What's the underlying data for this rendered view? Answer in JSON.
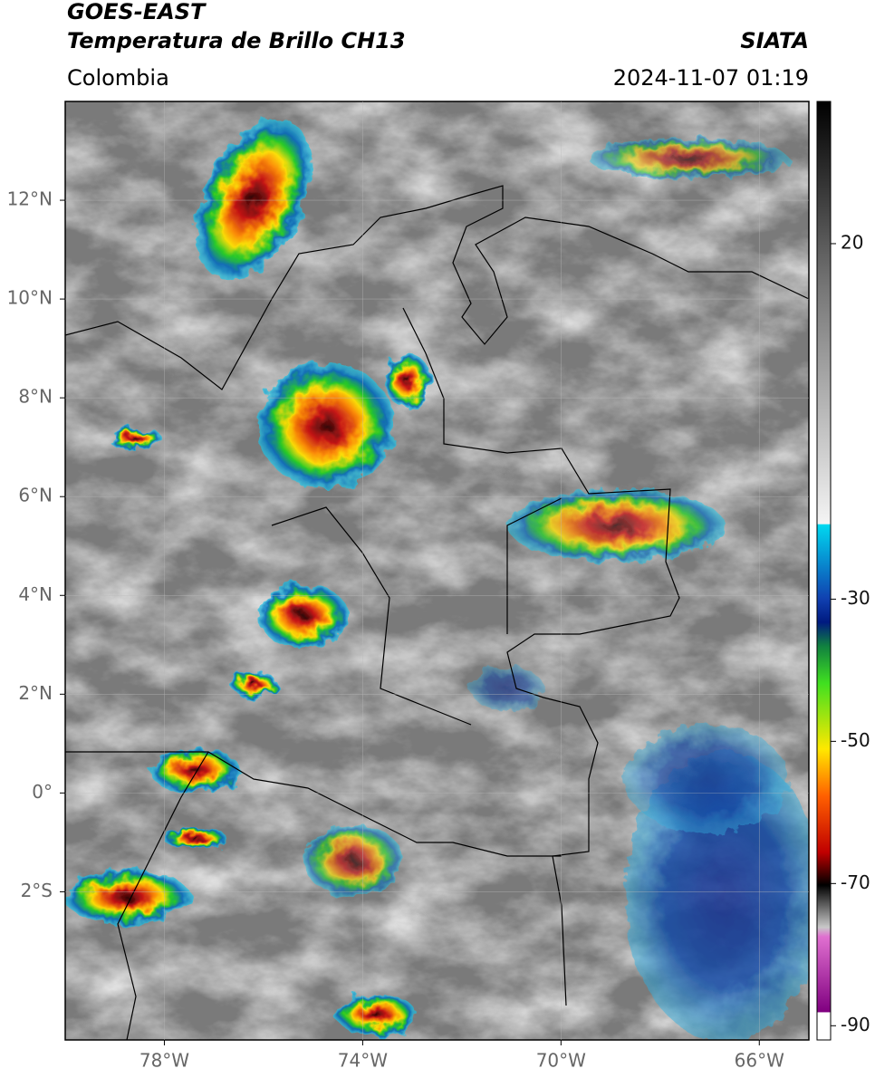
{
  "header": {
    "title": "GOES-EAST",
    "subtitle": "Temperatura de Brillo CH13",
    "source": "SIATA",
    "region": "Colombia",
    "datetime": "2024-11-07 01:19"
  },
  "map": {
    "xlim": [
      -80,
      -65
    ],
    "ylim": [
      -5,
      14
    ],
    "xticks": [
      {
        "value": -78,
        "label": "78°W"
      },
      {
        "value": -74,
        "label": "74°W"
      },
      {
        "value": -70,
        "label": "70°W"
      },
      {
        "value": -66,
        "label": "66°W"
      }
    ],
    "yticks": [
      {
        "value": 12,
        "label": "12°N"
      },
      {
        "value": 10,
        "label": "10°N"
      },
      {
        "value": 8,
        "label": "8°N"
      },
      {
        "value": 6,
        "label": "6°N"
      },
      {
        "value": 4,
        "label": "4°N"
      },
      {
        "value": 2,
        "label": "2°N"
      },
      {
        "value": 0,
        "label": "0°"
      },
      {
        "value": -2,
        "label": "2°S"
      }
    ],
    "grid": true
  },
  "colorbar": {
    "clim": [
      -92,
      40
    ],
    "ticks": [
      20,
      -30,
      -50,
      -70,
      -90
    ]
  }
}
